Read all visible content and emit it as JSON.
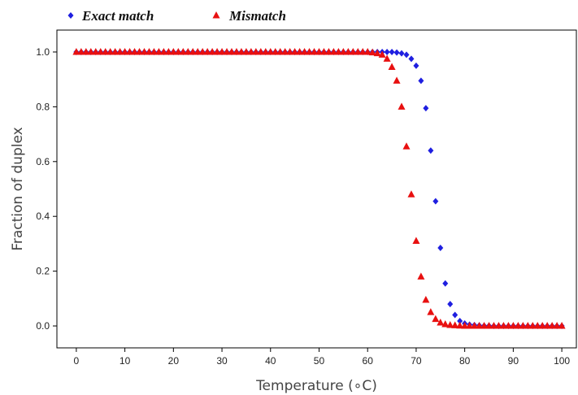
{
  "chart_data": {
    "type": "scatter",
    "xlabel": "Temperature (∘C)",
    "ylabel": "Fraction of duplex",
    "xlim": [
      -4,
      103
    ],
    "ylim": [
      -0.08,
      1.08
    ],
    "xticks": [
      "0",
      "10",
      "20",
      "30",
      "40",
      "50",
      "60",
      "70",
      "80",
      "90",
      "100"
    ],
    "yticks": [
      "0.0",
      "0.2",
      "0.4",
      "0.6",
      "0.8",
      "1.0"
    ],
    "grid": false,
    "legend_position": "top-left",
    "series": [
      {
        "name": "Exact match",
        "marker": "diamond",
        "color": "#1f1fe0",
        "x": [
          0,
          1,
          2,
          3,
          4,
          5,
          6,
          7,
          8,
          9,
          10,
          11,
          12,
          13,
          14,
          15,
          16,
          17,
          18,
          19,
          20,
          21,
          22,
          23,
          24,
          25,
          26,
          27,
          28,
          29,
          30,
          31,
          32,
          33,
          34,
          35,
          36,
          37,
          38,
          39,
          40,
          41,
          42,
          43,
          44,
          45,
          46,
          47,
          48,
          49,
          50,
          51,
          52,
          53,
          54,
          55,
          56,
          57,
          58,
          59,
          60,
          61,
          62,
          63,
          64,
          65,
          66,
          67,
          68,
          69,
          70,
          71,
          72,
          73,
          74,
          75,
          76,
          77,
          78,
          79,
          80,
          81,
          82,
          83,
          84,
          85,
          86,
          87,
          88,
          89,
          90,
          91,
          92,
          93,
          94,
          95,
          96,
          97,
          98,
          99,
          100
        ],
        "y": [
          1.0,
          1.0,
          1.0,
          1.0,
          1.0,
          1.0,
          1.0,
          1.0,
          1.0,
          1.0,
          1.0,
          1.0,
          1.0,
          1.0,
          1.0,
          1.0,
          1.0,
          1.0,
          1.0,
          1.0,
          1.0,
          1.0,
          1.0,
          1.0,
          1.0,
          1.0,
          1.0,
          1.0,
          1.0,
          1.0,
          1.0,
          1.0,
          1.0,
          1.0,
          1.0,
          1.0,
          1.0,
          1.0,
          1.0,
          1.0,
          1.0,
          1.0,
          1.0,
          1.0,
          1.0,
          1.0,
          1.0,
          1.0,
          1.0,
          1.0,
          1.0,
          1.0,
          1.0,
          1.0,
          1.0,
          1.0,
          1.0,
          1.0,
          1.0,
          1.0,
          1.0,
          1.0,
          1.0,
          1.0,
          1.0,
          1.0,
          0.998,
          0.995,
          0.99,
          0.975,
          0.95,
          0.895,
          0.795,
          0.64,
          0.455,
          0.285,
          0.155,
          0.08,
          0.04,
          0.018,
          0.009,
          0.005,
          0.003,
          0.002,
          0.001,
          0.001,
          0.0,
          0.0,
          0.0,
          0.0,
          0.0,
          0.0,
          0.0,
          0.0,
          0.0,
          0.0,
          0.0,
          0.0,
          0.0,
          0.0,
          0.0
        ]
      },
      {
        "name": "Mismatch",
        "marker": "triangle",
        "color": "#e81010",
        "x": [
          0,
          1,
          2,
          3,
          4,
          5,
          6,
          7,
          8,
          9,
          10,
          11,
          12,
          13,
          14,
          15,
          16,
          17,
          18,
          19,
          20,
          21,
          22,
          23,
          24,
          25,
          26,
          27,
          28,
          29,
          30,
          31,
          32,
          33,
          34,
          35,
          36,
          37,
          38,
          39,
          40,
          41,
          42,
          43,
          44,
          45,
          46,
          47,
          48,
          49,
          50,
          51,
          52,
          53,
          54,
          55,
          56,
          57,
          58,
          59,
          60,
          61,
          62,
          63,
          64,
          65,
          66,
          67,
          68,
          69,
          70,
          71,
          72,
          73,
          74,
          75,
          76,
          77,
          78,
          79,
          80,
          81,
          82,
          83,
          84,
          85,
          86,
          87,
          88,
          89,
          90,
          91,
          92,
          93,
          94,
          95,
          96,
          97,
          98,
          99,
          100
        ],
        "y": [
          1.0,
          1.0,
          1.0,
          1.0,
          1.0,
          1.0,
          1.0,
          1.0,
          1.0,
          1.0,
          1.0,
          1.0,
          1.0,
          1.0,
          1.0,
          1.0,
          1.0,
          1.0,
          1.0,
          1.0,
          1.0,
          1.0,
          1.0,
          1.0,
          1.0,
          1.0,
          1.0,
          1.0,
          1.0,
          1.0,
          1.0,
          1.0,
          1.0,
          1.0,
          1.0,
          1.0,
          1.0,
          1.0,
          1.0,
          1.0,
          1.0,
          1.0,
          1.0,
          1.0,
          1.0,
          1.0,
          1.0,
          1.0,
          1.0,
          1.0,
          1.0,
          1.0,
          1.0,
          1.0,
          1.0,
          1.0,
          1.0,
          1.0,
          1.0,
          1.0,
          1.0,
          0.998,
          0.995,
          0.99,
          0.975,
          0.945,
          0.895,
          0.8,
          0.655,
          0.48,
          0.31,
          0.18,
          0.095,
          0.05,
          0.025,
          0.012,
          0.006,
          0.003,
          0.002,
          0.001,
          0.0,
          0.0,
          0.0,
          0.0,
          0.0,
          0.0,
          0.0,
          0.0,
          0.0,
          0.0,
          0.0,
          0.0,
          0.0,
          0.0,
          0.0,
          0.0,
          0.0,
          0.0,
          0.0,
          0.0,
          0.0
        ]
      }
    ]
  }
}
